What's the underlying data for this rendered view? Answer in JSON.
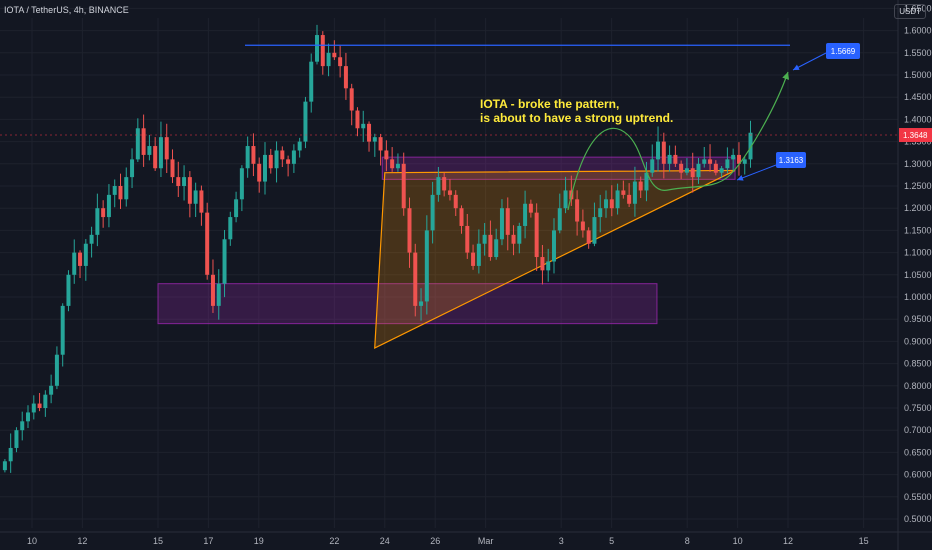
{
  "header": {
    "symbol_line": "IOTA / TetherUS, 4h, BINANCE",
    "unit_badge": "USDT"
  },
  "colors": {
    "background": "#131722",
    "up": "#26a69a",
    "down": "#ef5350",
    "zone_fill": "#9c27b0",
    "triangle": "#ff9800",
    "resistance": "#2962ff",
    "path": "#4caf50",
    "annotation_text": "#ffeb3b",
    "current_price": "#f23645"
  },
  "chart_data": {
    "type": "candlestick",
    "title": "IOTA / TetherUS, 4h, BINANCE",
    "x_ticks": [
      "10",
      "12",
      "15",
      "17",
      "19",
      "22",
      "24",
      "26",
      "Mar",
      "3",
      "5",
      "8",
      "10",
      "12",
      "15"
    ],
    "x_tick_day_index": [
      0,
      2,
      5,
      7,
      9,
      12,
      14,
      16,
      18,
      21,
      23,
      26,
      28,
      30,
      33
    ],
    "y_ticks": [
      "1.6500",
      "1.6000",
      "1.5500",
      "1.5000",
      "1.4500",
      "1.4000",
      "1.3500",
      "1.3000",
      "1.2500",
      "1.2000",
      "1.1500",
      "1.1000",
      "1.0500",
      "1.0000",
      "0.9500",
      "0.9000",
      "0.8500",
      "0.8000",
      "0.7500",
      "0.7000",
      "0.6500",
      "0.6000",
      "0.5500",
      "0.5000"
    ],
    "ylim": [
      0.495,
      1.67
    ],
    "current_price": "1.3648",
    "annotation": {
      "line1": "IOTA - broke the pattern,",
      "line2": "is about to have a strong uptrend."
    },
    "targets": [
      {
        "label": "1.5669",
        "price": 1.5669
      },
      {
        "label": "1.3163",
        "price": 1.3163
      }
    ],
    "resistance_price": 1.567,
    "zones": [
      {
        "name": "support-zone",
        "day_from": 5.0,
        "day_to": 24.8,
        "price_low": 0.94,
        "price_high": 1.03
      },
      {
        "name": "upper-zone",
        "day_from": 13.9,
        "day_to": 27.9,
        "price_low": 1.265,
        "price_high": 1.315
      }
    ],
    "triangle": {
      "apex_day": 13.6,
      "apex_price": 0.885,
      "top_from_day": 14.0,
      "top_to_day": 27.9,
      "top_price": 1.28,
      "right_day": 27.9,
      "right_price": 1.285
    },
    "closes": [
      0.63,
      0.66,
      0.7,
      0.72,
      0.74,
      0.76,
      0.75,
      0.78,
      0.8,
      0.87,
      0.98,
      1.05,
      1.1,
      1.07,
      1.12,
      1.14,
      1.2,
      1.18,
      1.23,
      1.25,
      1.22,
      1.27,
      1.31,
      1.38,
      1.32,
      1.34,
      1.29,
      1.36,
      1.31,
      1.27,
      1.25,
      1.27,
      1.21,
      1.24,
      1.19,
      1.05,
      0.98,
      1.03,
      1.13,
      1.18,
      1.22,
      1.29,
      1.34,
      1.3,
      1.26,
      1.32,
      1.29,
      1.33,
      1.31,
      1.3,
      1.33,
      1.35,
      1.44,
      1.53,
      1.59,
      1.52,
      1.55,
      1.54,
      1.52,
      1.47,
      1.42,
      1.38,
      1.39,
      1.35,
      1.36,
      1.33,
      1.31,
      1.29,
      1.3,
      1.2,
      1.1,
      0.98,
      0.99,
      1.15,
      1.23,
      1.27,
      1.24,
      1.23,
      1.2,
      1.16,
      1.1,
      1.07,
      1.12,
      1.14,
      1.09,
      1.13,
      1.2,
      1.14,
      1.12,
      1.16,
      1.21,
      1.19,
      1.09,
      1.06,
      1.08,
      1.15,
      1.2,
      1.24,
      1.22,
      1.17,
      1.15,
      1.12,
      1.18,
      1.2,
      1.22,
      1.2,
      1.24,
      1.23,
      1.21,
      1.26,
      1.24,
      1.28,
      1.31,
      1.35,
      1.3,
      1.32,
      1.3,
      1.28,
      1.29,
      1.27,
      1.3,
      1.31,
      1.3,
      1.28,
      1.29,
      1.31,
      1.32,
      1.3,
      1.31,
      1.37
    ]
  }
}
